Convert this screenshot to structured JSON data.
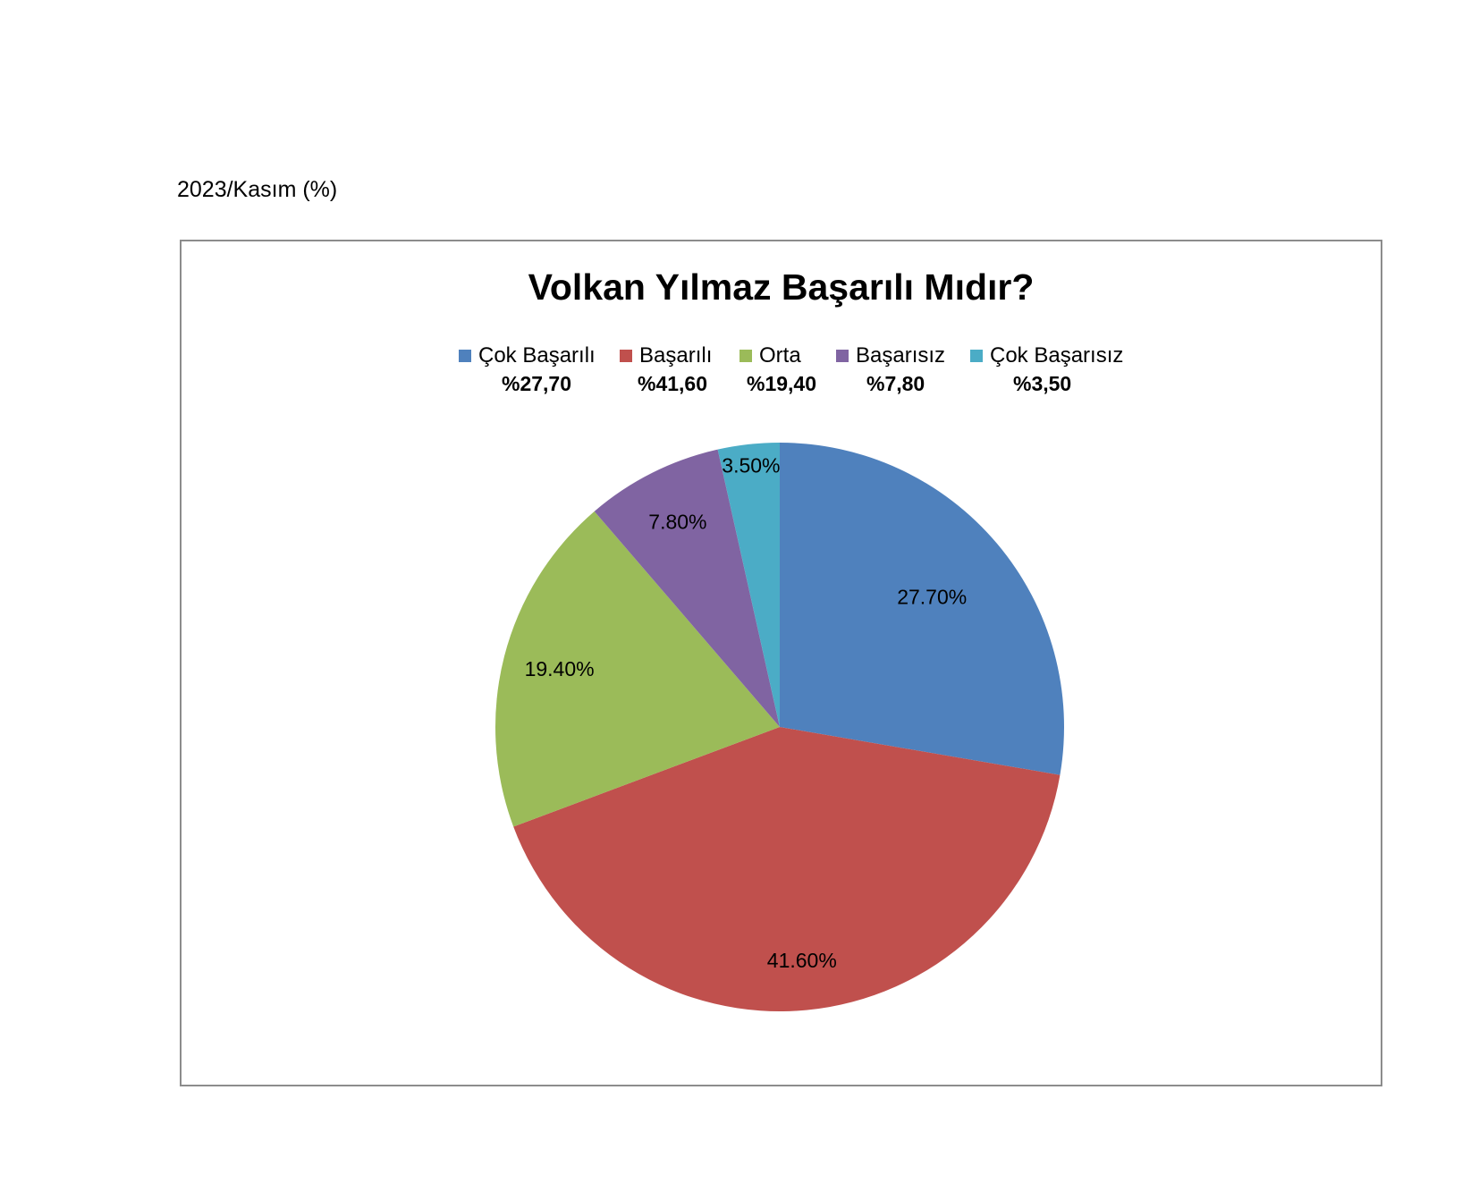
{
  "page": {
    "caption": "2023/Kasım (%)"
  },
  "chart_data": {
    "type": "pie",
    "title": "Volkan Yılmaz Başarılı Mıdır?",
    "legend_position": "top",
    "categories": [
      "Çok Başarılı",
      "Başarılı",
      "Orta",
      "Başarısız",
      "Çok Başarısız"
    ],
    "values": [
      27.7,
      41.6,
      19.4,
      7.8,
      3.5
    ],
    "legend_values": [
      "%27,70",
      "%41,60",
      "%19,40",
      "%7,80",
      "%3,50"
    ],
    "data_labels": [
      "27.70%",
      "41.60%",
      "19.40%",
      "7.80%",
      "3.50%"
    ],
    "colors": [
      "#4F81BD",
      "#C0504D",
      "#9BBB59",
      "#8064A2",
      "#4BACC6"
    ]
  }
}
